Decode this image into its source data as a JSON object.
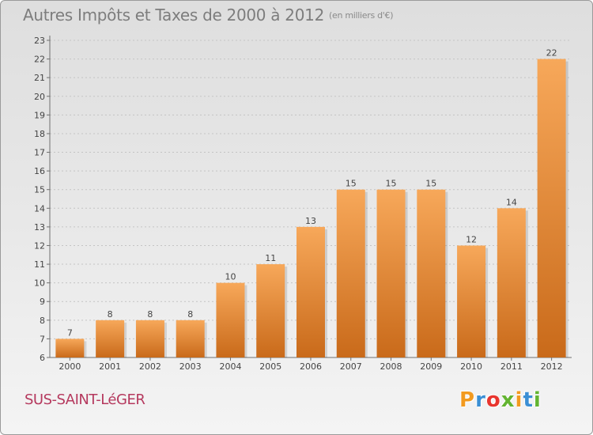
{
  "header": {
    "title": "Autres Impôts et Taxes de 2000 à 2012",
    "subtitle": "(en milliers d'€)"
  },
  "footer": {
    "town": "SUS-SAINT-LéGER",
    "logo_letters": [
      "P",
      "r",
      "o",
      "x",
      "i",
      "t",
      "i"
    ],
    "logo_colors": [
      "#f29a1f",
      "#3b8fd4",
      "#e8352e",
      "#63b431",
      "#f29a1f",
      "#3b8fd4",
      "#63b431"
    ]
  },
  "colors": {
    "bar_light": "#f7a85a",
    "bar_dark": "#c96a1a",
    "axis": "#6f6f6f",
    "grid": "#c4c4c4"
  },
  "chart_data": {
    "type": "bar",
    "title": "Autres Impôts et Taxes de 2000 à 2012",
    "subtitle": "(en milliers d'€)",
    "categories": [
      "2000",
      "2001",
      "2002",
      "2003",
      "2004",
      "2005",
      "2006",
      "2007",
      "2008",
      "2009",
      "2010",
      "2011",
      "2012"
    ],
    "values": [
      7,
      8,
      8,
      8,
      10,
      11,
      13,
      15,
      15,
      15,
      12,
      14,
      22
    ],
    "data_labels": [
      "7",
      "8",
      "8",
      "8",
      "10",
      "11",
      "13",
      "15",
      "15",
      "15",
      "12",
      "14",
      "22"
    ],
    "ylim": [
      6,
      23
    ],
    "yticks": [
      6,
      7,
      8,
      9,
      10,
      11,
      12,
      13,
      14,
      15,
      16,
      17,
      18,
      19,
      20,
      21,
      22,
      23
    ],
    "grid": true,
    "xlabel": "",
    "ylabel": ""
  }
}
